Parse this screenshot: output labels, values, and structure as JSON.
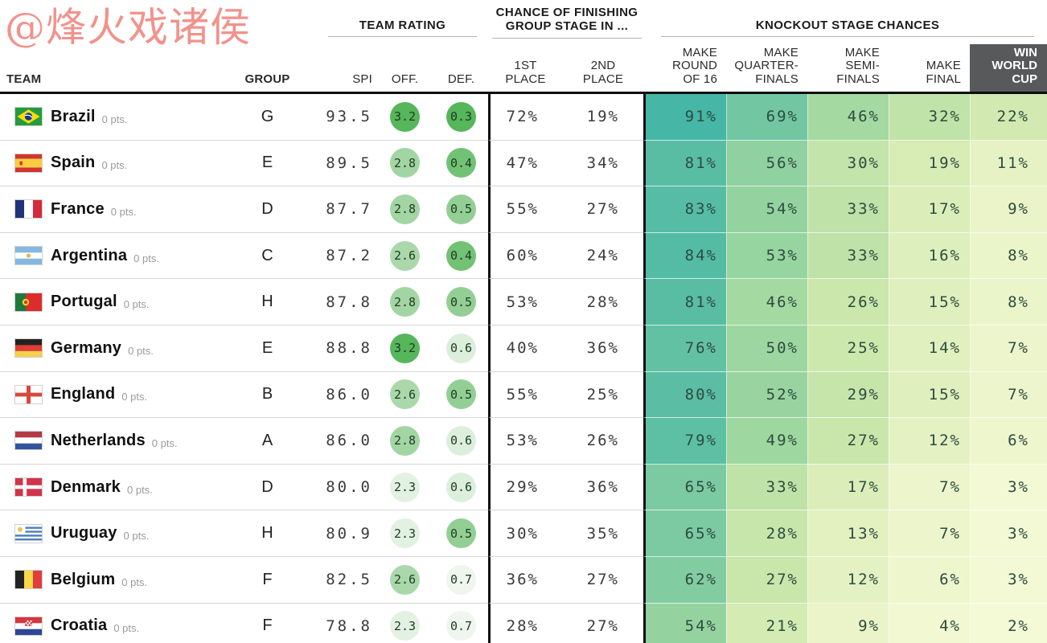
{
  "watermark": {
    "text": "@烽火戏诸侯"
  },
  "header": {
    "sections": {
      "team_rating": "TEAM RATING",
      "group_stage": [
        "CHANCE OF FINISHING",
        "GROUP STAGE IN ..."
      ],
      "knockout": "KNOCKOUT STAGE CHANCES"
    },
    "columns": {
      "team": "TEAM",
      "group": "GROUP",
      "spi": "SPI",
      "off": "OFF.",
      "def": "DEF.",
      "p1": [
        "1ST",
        "PLACE"
      ],
      "p2": [
        "2ND",
        "PLACE"
      ],
      "r16": [
        "MAKE",
        "ROUND",
        "OF 16"
      ],
      "qf": [
        "MAKE",
        "QUARTER-",
        "FINALS"
      ],
      "sf": [
        "MAKE",
        "SEMI-",
        "FINALS"
      ],
      "final": [
        "MAKE",
        "FINAL"
      ],
      "win": [
        "WIN",
        "WORLD",
        "CUP"
      ]
    }
  },
  "colors": {
    "win_box": "#58595b",
    "watermark": "#f1837c",
    "header_rule": "#b3b3b3",
    "cell_scale": {
      "0": "#f7fbda",
      "10": "#e8f3c6",
      "25": "#cde8ac",
      "50": "#9dd6a0",
      "75": "#65c2a3",
      "100": "#35afa8"
    },
    "off_circle": {
      "3.2": "#56b65b",
      "2.8": "#a2d5a3",
      "2.6": "#aad8ab",
      "2.3": "#e3f1e3"
    },
    "def_circle": {
      "0.3": "#56b65b",
      "0.4": "#72c276",
      "0.5": "#93cf95",
      "0.6": "#dcefdc",
      "0.7": "#eef6ee"
    }
  },
  "chart_data": {
    "type": "table",
    "columns": [
      "TEAM",
      "GROUP",
      "SPI",
      "OFF.",
      "DEF.",
      "1ST PLACE",
      "2ND PLACE",
      "MAKE ROUND OF 16",
      "MAKE QUARTER-FINALS",
      "MAKE SEMI-FINALS",
      "MAKE FINAL",
      "WIN WORLD CUP"
    ],
    "percent_unit": "%",
    "rows": [
      {
        "team": "Brazil",
        "pts": "0 pts.",
        "flag": "brazil",
        "group": "G",
        "spi": "93.5",
        "off": "3.2",
        "def": "0.3",
        "p1": 72,
        "p2": 19,
        "r16": 91,
        "qf": 69,
        "sf": 46,
        "final": 32,
        "win": 22
      },
      {
        "team": "Spain",
        "pts": "0 pts.",
        "flag": "spain",
        "group": "E",
        "spi": "89.5",
        "off": "2.8",
        "def": "0.4",
        "p1": 47,
        "p2": 34,
        "r16": 81,
        "qf": 56,
        "sf": 30,
        "final": 19,
        "win": 11
      },
      {
        "team": "France",
        "pts": "0 pts.",
        "flag": "france",
        "group": "D",
        "spi": "87.7",
        "off": "2.8",
        "def": "0.5",
        "p1": 55,
        "p2": 27,
        "r16": 83,
        "qf": 54,
        "sf": 33,
        "final": 17,
        "win": 9
      },
      {
        "team": "Argentina",
        "pts": "0 pts.",
        "flag": "argentina",
        "group": "C",
        "spi": "87.2",
        "off": "2.6",
        "def": "0.4",
        "p1": 60,
        "p2": 24,
        "r16": 84,
        "qf": 53,
        "sf": 33,
        "final": 16,
        "win": 8
      },
      {
        "team": "Portugal",
        "pts": "0 pts.",
        "flag": "portugal",
        "group": "H",
        "spi": "87.8",
        "off": "2.8",
        "def": "0.5",
        "p1": 53,
        "p2": 28,
        "r16": 81,
        "qf": 46,
        "sf": 26,
        "final": 15,
        "win": 8
      },
      {
        "team": "Germany",
        "pts": "0 pts.",
        "flag": "germany",
        "group": "E",
        "spi": "88.8",
        "off": "3.2",
        "def": "0.6",
        "p1": 40,
        "p2": 36,
        "r16": 76,
        "qf": 50,
        "sf": 25,
        "final": 14,
        "win": 7
      },
      {
        "team": "England",
        "pts": "0 pts.",
        "flag": "england",
        "group": "B",
        "spi": "86.0",
        "off": "2.6",
        "def": "0.5",
        "p1": 55,
        "p2": 25,
        "r16": 80,
        "qf": 52,
        "sf": 29,
        "final": 15,
        "win": 7
      },
      {
        "team": "Netherlands",
        "pts": "0 pts.",
        "flag": "netherlands",
        "group": "A",
        "spi": "86.0",
        "off": "2.8",
        "def": "0.6",
        "p1": 53,
        "p2": 26,
        "r16": 79,
        "qf": 49,
        "sf": 27,
        "final": 12,
        "win": 6
      },
      {
        "team": "Denmark",
        "pts": "0 pts.",
        "flag": "denmark",
        "group": "D",
        "spi": "80.0",
        "off": "2.3",
        "def": "0.6",
        "p1": 29,
        "p2": 36,
        "r16": 65,
        "qf": 33,
        "sf": 17,
        "final": 7,
        "win": 3
      },
      {
        "team": "Uruguay",
        "pts": "0 pts.",
        "flag": "uruguay",
        "group": "H",
        "spi": "80.9",
        "off": "2.3",
        "def": "0.5",
        "p1": 30,
        "p2": 35,
        "r16": 65,
        "qf": 28,
        "sf": 13,
        "final": 7,
        "win": 3
      },
      {
        "team": "Belgium",
        "pts": "0 pts.",
        "flag": "belgium",
        "group": "F",
        "spi": "82.5",
        "off": "2.6",
        "def": "0.7",
        "p1": 36,
        "p2": 27,
        "r16": 62,
        "qf": 27,
        "sf": 12,
        "final": 6,
        "win": 3
      },
      {
        "team": "Croatia",
        "pts": "0 pts.",
        "flag": "croatia",
        "group": "F",
        "spi": "78.8",
        "off": "2.3",
        "def": "0.7",
        "p1": 28,
        "p2": 27,
        "r16": 54,
        "qf": 21,
        "sf": 9,
        "final": 4,
        "win": 2
      }
    ]
  }
}
